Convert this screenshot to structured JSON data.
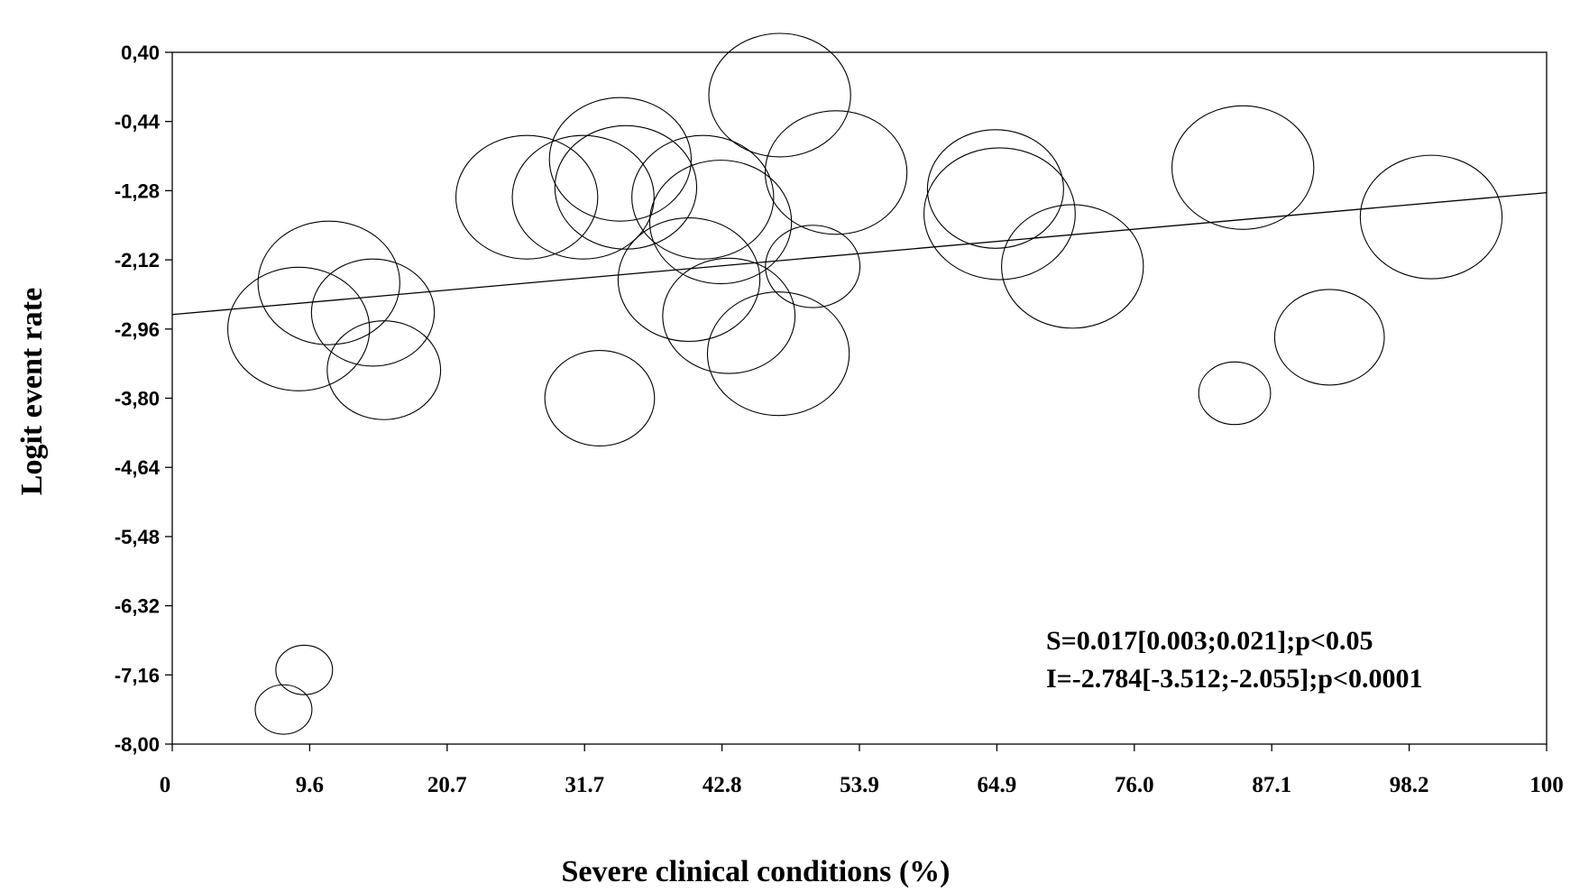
{
  "chart_data": {
    "type": "scatter",
    "xlabel": "Severe clinical conditions (%)",
    "ylabel": "Logit event rate",
    "xlim": [
      0,
      100
    ],
    "ylim": [
      -8.0,
      0.4
    ],
    "x_ticks": [
      0,
      9.6,
      20.7,
      31.7,
      42.8,
      53.9,
      64.9,
      76.0,
      87.1,
      98.2,
      100
    ],
    "x_tick_labels": [
      "0",
      "9.6",
      "20.7",
      "31.7",
      "42.8",
      "53.9",
      "64.9",
      "76.0",
      "87.1",
      "98.2",
      "100"
    ],
    "x_tick_positions": [
      0,
      10.0,
      20.0,
      30.0,
      40.0,
      50.0,
      60.0,
      70.0,
      80.0,
      90.0,
      100.0
    ],
    "y_ticks": [
      0.4,
      -0.44,
      -1.28,
      -2.12,
      -2.96,
      -3.8,
      -4.64,
      -5.48,
      -6.32,
      -7.16,
      -8.0
    ],
    "y_tick_labels": [
      "0,40",
      "-0,44",
      "-1,28",
      "-2,12",
      "-2,96",
      "-3,80",
      "-4,64",
      "-5,48",
      "-6,32",
      "-7,16",
      "-8,00"
    ],
    "grid": false,
    "regression_line": {
      "slope": 0.017,
      "intercept": -2.784,
      "x_range": [
        0,
        100
      ]
    },
    "annotations": [
      "S=0.017[0.003;0.021];p<0.05",
      "I=-2.784[-3.512;-2.055];p<0.0001"
    ],
    "points": [
      {
        "x": 8.1,
        "y": -7.58,
        "w": 0.3
      },
      {
        "x": 9.6,
        "y": -7.1,
        "w": 0.3
      },
      {
        "x": 9.2,
        "y": -2.96,
        "w": 0.75
      },
      {
        "x": 11.4,
        "y": -2.4,
        "w": 0.75
      },
      {
        "x": 14.6,
        "y": -2.76,
        "w": 0.65
      },
      {
        "x": 15.4,
        "y": -3.46,
        "w": 0.6
      },
      {
        "x": 25.8,
        "y": -1.36,
        "w": 0.75
      },
      {
        "x": 29.9,
        "y": -1.36,
        "w": 0.75
      },
      {
        "x": 31.1,
        "y": -3.8,
        "w": 0.58
      },
      {
        "x": 32.6,
        "y": -0.9,
        "w": 0.75
      },
      {
        "x": 33.0,
        "y": -1.24,
        "w": 0.75
      },
      {
        "x": 37.6,
        "y": -2.36,
        "w": 0.75
      },
      {
        "x": 38.6,
        "y": -1.36,
        "w": 0.75
      },
      {
        "x": 39.9,
        "y": -1.66,
        "w": 0.75
      },
      {
        "x": 40.5,
        "y": -2.8,
        "w": 0.7
      },
      {
        "x": 44.2,
        "y": -0.12,
        "w": 0.75
      },
      {
        "x": 44.1,
        "y": -3.26,
        "w": 0.75
      },
      {
        "x": 46.6,
        "y": -2.2,
        "w": 0.5
      },
      {
        "x": 48.3,
        "y": -1.06,
        "w": 0.75
      },
      {
        "x": 59.9,
        "y": -1.26,
        "w": 0.72
      },
      {
        "x": 60.2,
        "y": -1.56,
        "w": 0.8
      },
      {
        "x": 65.5,
        "y": -2.2,
        "w": 0.75
      },
      {
        "x": 77.3,
        "y": -3.74,
        "w": 0.38
      },
      {
        "x": 77.9,
        "y": -1.0,
        "w": 0.75
      },
      {
        "x": 84.2,
        "y": -3.06,
        "w": 0.58
      },
      {
        "x": 91.6,
        "y": -1.6,
        "w": 0.75
      }
    ]
  }
}
